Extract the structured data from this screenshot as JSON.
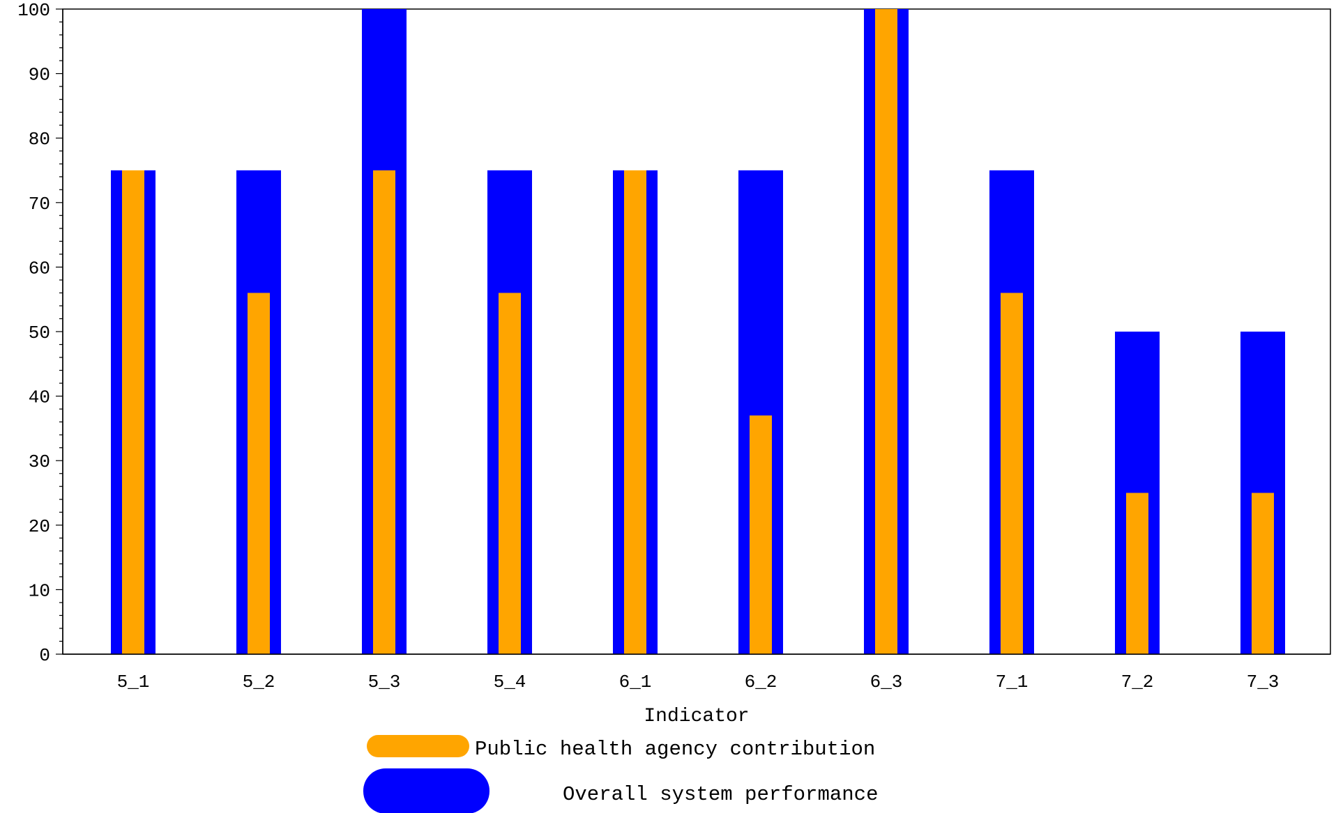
{
  "chart_data": {
    "type": "bar",
    "title": "",
    "xlabel": "Indicator",
    "ylabel": "",
    "ylim": [
      0,
      100
    ],
    "yticks": [
      0,
      10,
      20,
      30,
      40,
      50,
      60,
      70,
      80,
      90,
      100
    ],
    "yticks_labels": [
      "0",
      "10",
      "20",
      "30",
      "40",
      "50",
      "60",
      "70",
      "80",
      "90",
      "100"
    ],
    "categories": [
      "5_1",
      "5_2",
      "5_3",
      "5_4",
      "6_1",
      "6_2",
      "6_3",
      "7_1",
      "7_2",
      "7_3"
    ],
    "series": [
      {
        "name": "Overall system performance",
        "values": [
          75,
          75,
          100,
          75,
          75,
          75,
          100,
          75,
          50,
          50
        ],
        "color": "#0000ff"
      },
      {
        "name": "Public health agency contribution",
        "values": [
          75,
          56,
          75,
          56,
          75,
          37,
          100,
          56,
          25,
          25
        ],
        "color": "#ffa500"
      }
    ],
    "grid": false,
    "legend_position": "bottom"
  },
  "legend": {
    "items": [
      {
        "label": "Public health agency contribution",
        "color": "#ffa500"
      },
      {
        "label": "Overall system performance",
        "color": "#0000ff"
      }
    ]
  }
}
